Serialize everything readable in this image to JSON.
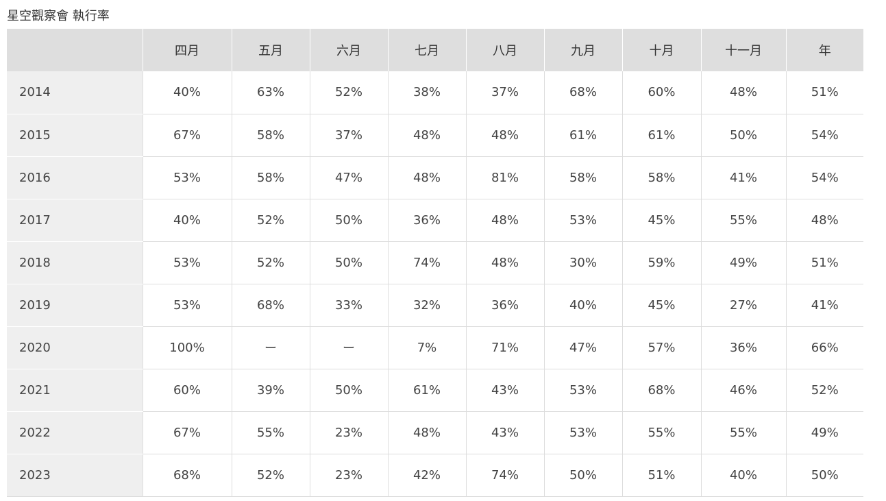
{
  "title": "星空觀察會 執行率",
  "table": {
    "headers": [
      "",
      "四月",
      "五月",
      "六月",
      "七月",
      "八月",
      "九月",
      "十月",
      "十一月",
      "年"
    ],
    "rows": [
      {
        "year": "2014",
        "values": [
          "40%",
          "63%",
          "52%",
          "38%",
          "37%",
          "68%",
          "60%",
          "48%",
          "51%"
        ]
      },
      {
        "year": "2015",
        "values": [
          "67%",
          "58%",
          "37%",
          "48%",
          "48%",
          "61%",
          "61%",
          "50%",
          "54%"
        ]
      },
      {
        "year": "2016",
        "values": [
          "53%",
          "58%",
          "47%",
          "48%",
          "81%",
          "58%",
          "58%",
          "41%",
          "54%"
        ]
      },
      {
        "year": "2017",
        "values": [
          "40%",
          "52%",
          "50%",
          "36%",
          "48%",
          "53%",
          "45%",
          "55%",
          "48%"
        ]
      },
      {
        "year": "2018",
        "values": [
          "53%",
          "52%",
          "50%",
          "74%",
          "48%",
          "30%",
          "59%",
          "49%",
          "51%"
        ]
      },
      {
        "year": "2019",
        "values": [
          "53%",
          "68%",
          "33%",
          "32%",
          "36%",
          "40%",
          "45%",
          "27%",
          "41%"
        ]
      },
      {
        "year": "2020",
        "values": [
          "100%",
          "ー",
          "ー",
          "7%",
          "71%",
          "47%",
          "57%",
          "36%",
          "66%"
        ]
      },
      {
        "year": "2021",
        "values": [
          "60%",
          "39%",
          "50%",
          "61%",
          "43%",
          "53%",
          "68%",
          "46%",
          "52%"
        ]
      },
      {
        "year": "2022",
        "values": [
          "67%",
          "55%",
          "23%",
          "48%",
          "43%",
          "53%",
          "55%",
          "55%",
          "49%"
        ]
      },
      {
        "year": "2023",
        "values": [
          "68%",
          "52%",
          "23%",
          "42%",
          "74%",
          "50%",
          "51%",
          "40%",
          "50%"
        ]
      }
    ]
  }
}
